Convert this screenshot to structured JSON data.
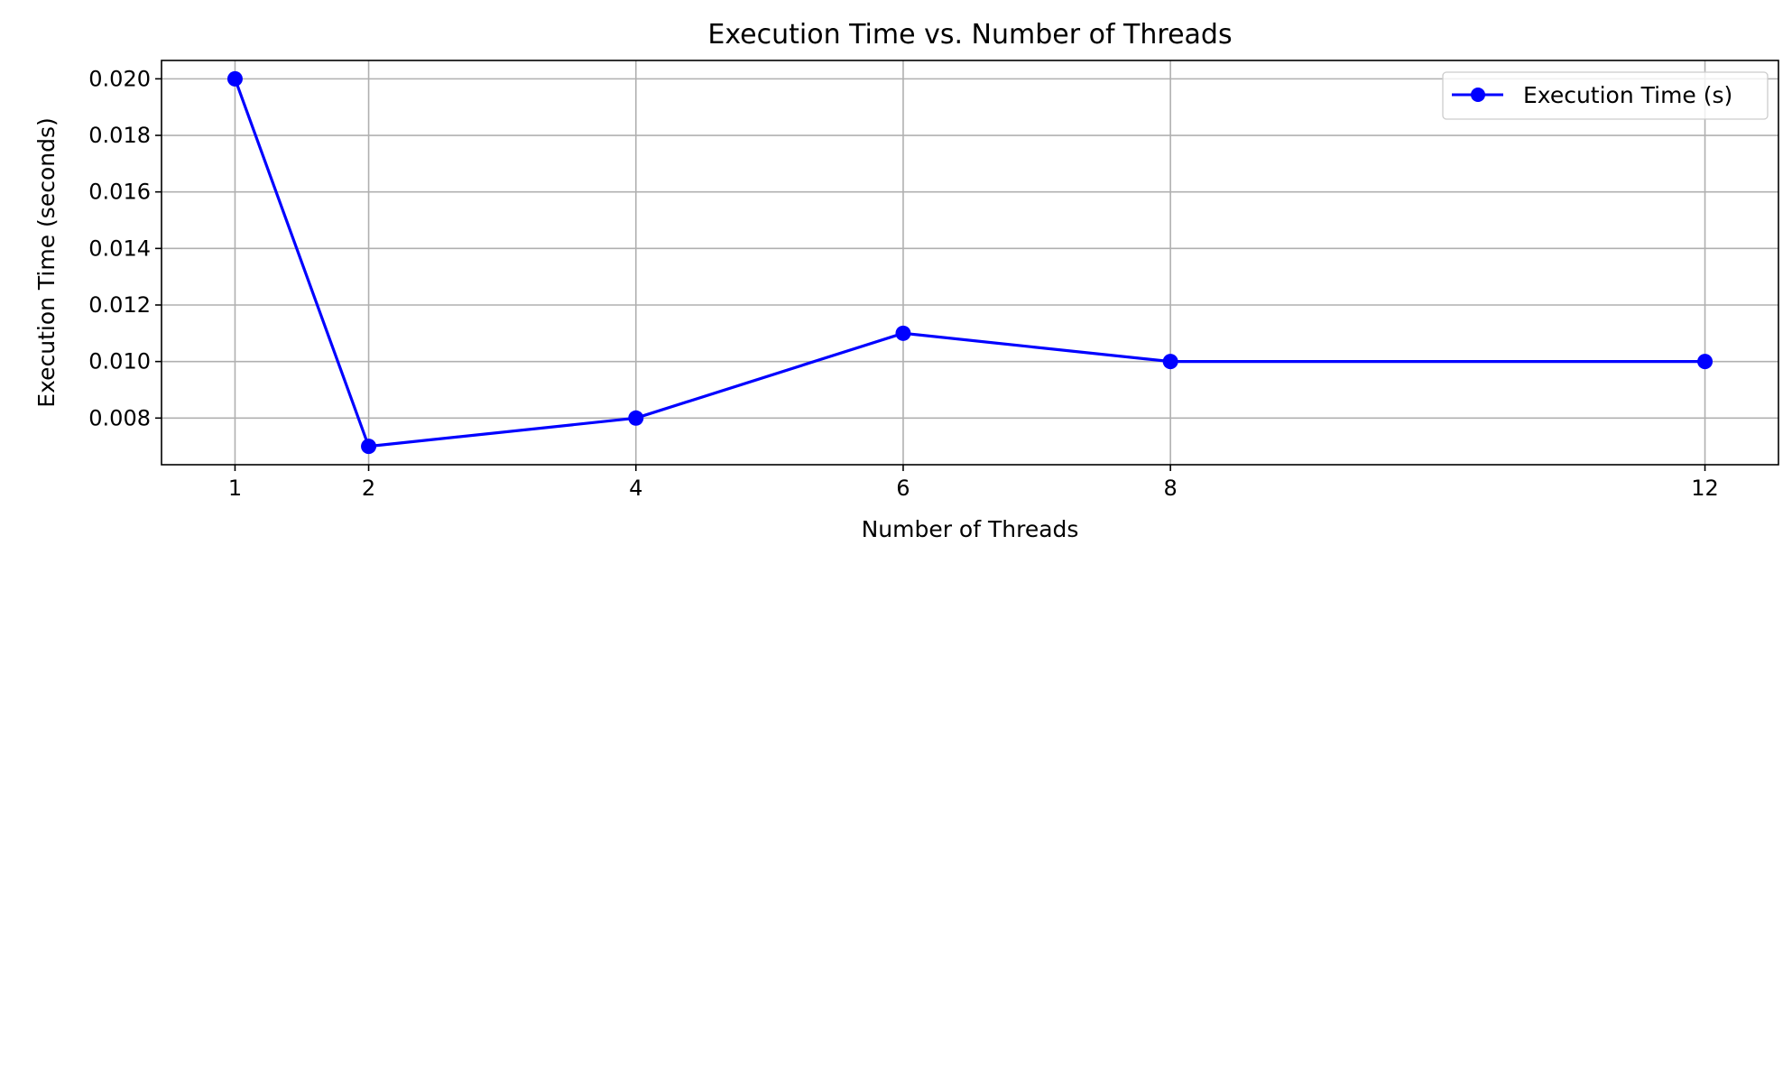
{
  "chart_data": {
    "type": "line",
    "title": "Execution Time vs. Number of Threads",
    "xlabel": "Number of Threads",
    "ylabel": "Execution Time (seconds)",
    "x": [
      1,
      2,
      4,
      6,
      8,
      12
    ],
    "series": [
      {
        "name": "Execution Time (s)",
        "values": [
          0.02,
          0.007,
          0.008,
          0.011,
          0.01,
          0.01
        ],
        "color": "#0000ff",
        "marker": "circle"
      }
    ],
    "xticks": [
      "1",
      "2",
      "4",
      "6",
      "8",
      "12"
    ],
    "yticks": [
      "0.008",
      "0.010",
      "0.012",
      "0.014",
      "0.016",
      "0.018",
      "0.020"
    ],
    "xlim": [
      0.45,
      12.55
    ],
    "ylim": [
      0.00635,
      0.02065
    ],
    "grid": true,
    "grid_color": "#b0b0b0",
    "legend_position": "top-right"
  }
}
